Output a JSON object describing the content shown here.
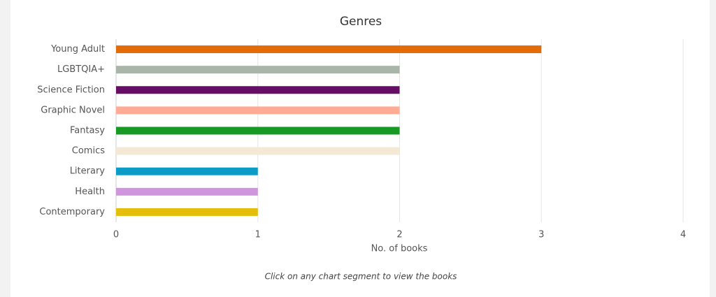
{
  "chart_data": {
    "type": "hbar",
    "title": "Genres",
    "categories": [
      "Young Adult",
      "LGBTQIA+",
      "Science Fiction",
      "Graphic Novel",
      "Fantasy",
      "Comics",
      "Literary",
      "Health",
      "Contemporary"
    ],
    "values": [
      3,
      2,
      2,
      2,
      2,
      2,
      1,
      1,
      1
    ],
    "colors": [
      "#e36c09",
      "#a9b5a8",
      "#660e66",
      "#ffab96",
      "#169a23",
      "#f3e9d4",
      "#0a9bc7",
      "#cf95dd",
      "#e4be0b"
    ],
    "xlabel": "No. of books",
    "xlim": [
      0,
      4
    ],
    "xticks": [
      0,
      1,
      2,
      3,
      4
    ],
    "grid": true,
    "note": "Click on any chart segment to view the books"
  }
}
